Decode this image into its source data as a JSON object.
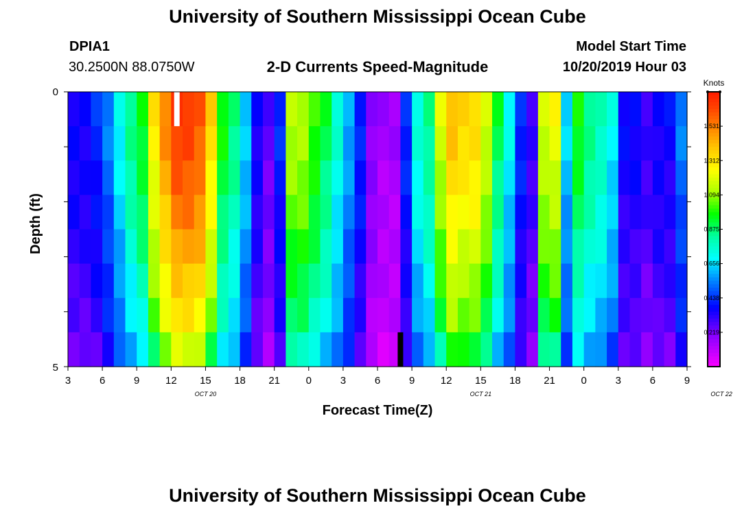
{
  "header": {
    "title": "University of Southern Mississippi Ocean Cube",
    "station_id": "DPIA1",
    "coordinates": "30.2500N 88.0750W",
    "chart_title": "2-D Currents Speed-Magnitude",
    "model_start_label": "Model Start Time",
    "model_start_value": "10/20/2019 Hour 03"
  },
  "footer": {
    "title": "University of Southern Mississippi Ocean Cube"
  },
  "colorbar": {
    "unit": "Knots",
    "ticks": [
      "1.531",
      "1.312",
      "1.094",
      "0.875",
      "0.656",
      "0.438",
      "0.219"
    ],
    "colors": [
      "#ff2000",
      "#ff4000",
      "#ff8000",
      "#ffcc00",
      "#ffff00",
      "#aaff00",
      "#00ff00",
      "#00ffaa",
      "#00ffff",
      "#0088ff",
      "#0000ff",
      "#8800ff",
      "#ff00ff"
    ]
  },
  "chart_data": {
    "type": "heatmap",
    "title": "2-D Currents Speed-Magnitude",
    "xlabel": "Forecast Time(Z)",
    "ylabel": "Depth (ft)",
    "ylim": [
      0,
      5
    ],
    "y_tick_labels": [
      "0",
      "5"
    ],
    "x_tick_labels": [
      "3",
      "6",
      "9",
      "12",
      "15",
      "18",
      "21",
      "0",
      "3",
      "6",
      "9",
      "12",
      "15",
      "18",
      "21",
      "0",
      "3",
      "6",
      "9"
    ],
    "date_labels": [
      {
        "text": "OCT 20",
        "hour_offset": 12
      },
      {
        "text": "OCT 21",
        "hour_offset": 36
      },
      {
        "text": "OCT 22",
        "hour_offset": 57
      }
    ],
    "x_hours_range": [
      0,
      54
    ],
    "depth_layers": 8,
    "value_range_knots": [
      0.1,
      1.7
    ],
    "surface_profile_knots": [
      0.45,
      0.45,
      0.5,
      0.6,
      0.75,
      0.9,
      1.0,
      1.3,
      1.5,
      1.65,
      1.65,
      1.6,
      1.35,
      1.0,
      0.9,
      0.7,
      0.45,
      0.35,
      0.5,
      1.15,
      1.15,
      1.05,
      0.95,
      0.8,
      0.65,
      0.5,
      0.3,
      0.25,
      0.25,
      0.5,
      0.8,
      0.9,
      1.2,
      1.4,
      1.35,
      1.35,
      1.2,
      0.95,
      0.75,
      0.5,
      0.4,
      1.2,
      1.25,
      0.7,
      1.0,
      0.9,
      0.85,
      0.75,
      0.45,
      0.45,
      0.4,
      0.45,
      0.45,
      0.6
    ],
    "depth_attenuation": [
      1.0,
      0.98,
      0.95,
      0.92,
      0.88,
      0.84,
      0.8,
      0.72
    ],
    "missing_markers": [
      {
        "hour": 9.5,
        "depth_layer": 0,
        "color": "#ffffff"
      },
      {
        "hour": 29,
        "depth_layer": 7,
        "color": "#000000"
      }
    ]
  }
}
